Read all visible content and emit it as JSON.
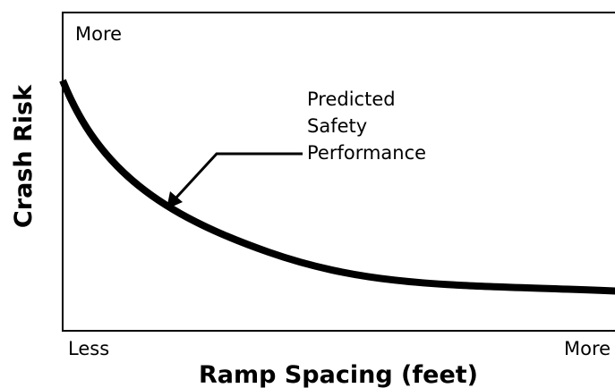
{
  "chart_data": {
    "type": "line",
    "y_label": "Crash Risk",
    "x_label": "Ramp Spacing (feet)",
    "y_high_label": "More",
    "x_low_label": "Less",
    "x_high_label": "More",
    "annotation": [
      "Predicted",
      "Safety",
      "Performance"
    ]
  }
}
